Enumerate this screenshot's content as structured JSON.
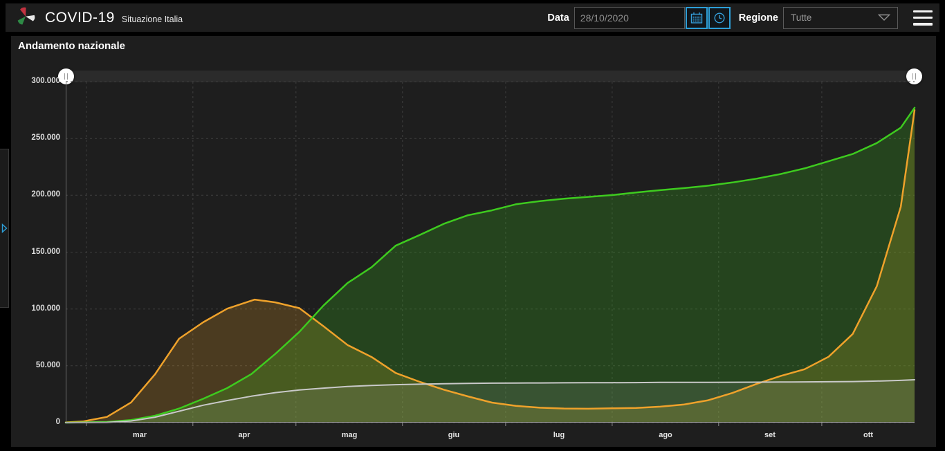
{
  "header": {
    "title": "COVID-19",
    "subtitle": "Situazione Italia",
    "date_label": "Data",
    "date_value": "28/10/2020",
    "region_label": "Regione",
    "region_value": "Tutte"
  },
  "panel": {
    "title": "Andamento nazionale"
  },
  "colors": {
    "accent_blue": "#2d9fd8",
    "series_green": "#3ecb1f",
    "series_orange": "#efa22b",
    "series_gray": "#c9c9c9",
    "panel_bg": "#1e1e1e",
    "page_bg": "#000000"
  },
  "chart_data": {
    "type": "area",
    "title": "Andamento nazionale",
    "xlabel": "",
    "ylabel": "",
    "grid": "dashed",
    "legend_position": "none",
    "x_days_total": 247,
    "ylim": [
      0,
      300000
    ],
    "yticks": [
      {
        "value": 0,
        "label": "0"
      },
      {
        "value": 50000,
        "label": "50.000"
      },
      {
        "value": 100000,
        "label": "100.000"
      },
      {
        "value": 150000,
        "label": "150.000"
      },
      {
        "value": 200000,
        "label": "200.000"
      },
      {
        "value": 250000,
        "label": "250.000"
      },
      {
        "value": 300000,
        "label": "300.000"
      }
    ],
    "months": [
      {
        "label": "mar",
        "tick_day": 6,
        "center_day": 21.5
      },
      {
        "label": "apr",
        "tick_day": 37,
        "center_day": 52
      },
      {
        "label": "mag",
        "tick_day": 67,
        "center_day": 82.5
      },
      {
        "label": "giu",
        "tick_day": 98,
        "center_day": 113
      },
      {
        "label": "lug",
        "tick_day": 128,
        "center_day": 143.5
      },
      {
        "label": "ago",
        "tick_day": 159,
        "center_day": 174.5
      },
      {
        "label": "set",
        "tick_day": 190,
        "center_day": 205
      },
      {
        "label": "ott",
        "tick_day": 220,
        "center_day": 233.5
      }
    ],
    "series": [
      {
        "name": "series-orange",
        "color": "#efa22b",
        "fill_opacity": 0.22,
        "line_width": 2.5,
        "points": [
          [
            0,
            221
          ],
          [
            5,
            1049
          ],
          [
            12,
            5061
          ],
          [
            19,
            17750
          ],
          [
            26,
            42681
          ],
          [
            33,
            73880
          ],
          [
            40,
            88274
          ],
          [
            47,
            100269
          ],
          [
            55,
            108257
          ],
          [
            61,
            105847
          ],
          [
            68,
            100704
          ],
          [
            75,
            84842
          ],
          [
            82,
            68351
          ],
          [
            89,
            57752
          ],
          [
            96,
            43691
          ],
          [
            103,
            35877
          ],
          [
            110,
            28997
          ],
          [
            117,
            23101
          ],
          [
            124,
            17638
          ],
          [
            131,
            14709
          ],
          [
            138,
            13157
          ],
          [
            145,
            12442
          ],
          [
            152,
            12248
          ],
          [
            159,
            12616
          ],
          [
            166,
            12924
          ],
          [
            173,
            14081
          ],
          [
            180,
            16014
          ],
          [
            187,
            19714
          ],
          [
            194,
            26078
          ],
          [
            201,
            34000
          ],
          [
            208,
            41000
          ],
          [
            215,
            47000
          ],
          [
            222,
            58000
          ],
          [
            229,
            78000
          ],
          [
            236,
            120000
          ],
          [
            243,
            190000
          ],
          [
            247,
            275000
          ]
        ]
      },
      {
        "name": "series-green",
        "color": "#3ecb1f",
        "fill_opacity": 0.22,
        "line_width": 2.5,
        "points": [
          [
            0,
            1
          ],
          [
            12,
            589
          ],
          [
            19,
            2335
          ],
          [
            26,
            6072
          ],
          [
            33,
            12384
          ],
          [
            40,
            20996
          ],
          [
            47,
            30455
          ],
          [
            54,
            42727
          ],
          [
            61,
            60498
          ],
          [
            68,
            79914
          ],
          [
            75,
            103031
          ],
          [
            82,
            122810
          ],
          [
            89,
            136720
          ],
          [
            96,
            155633
          ],
          [
            103,
            165078
          ],
          [
            110,
            174865
          ],
          [
            117,
            182453
          ],
          [
            124,
            186725
          ],
          [
            131,
            192108
          ],
          [
            138,
            194928
          ],
          [
            145,
            196949
          ],
          [
            152,
            198593
          ],
          [
            159,
            200229
          ],
          [
            166,
            202461
          ],
          [
            173,
            204506
          ],
          [
            180,
            206329
          ],
          [
            187,
            208490
          ],
          [
            194,
            211272
          ],
          [
            201,
            214645
          ],
          [
            208,
            218703
          ],
          [
            215,
            223693
          ],
          [
            222,
            229970
          ],
          [
            229,
            236363
          ],
          [
            236,
            245964
          ],
          [
            243,
            259456
          ],
          [
            247,
            277000
          ]
        ]
      },
      {
        "name": "series-gray",
        "color": "#c9c9c9",
        "fill_opacity": 0.12,
        "line_width": 2,
        "points": [
          [
            0,
            7
          ],
          [
            12,
            233
          ],
          [
            19,
            1441
          ],
          [
            26,
            4825
          ],
          [
            33,
            10023
          ],
          [
            40,
            15362
          ],
          [
            47,
            19468
          ],
          [
            54,
            23227
          ],
          [
            61,
            26384
          ],
          [
            68,
            28710
          ],
          [
            75,
            30395
          ],
          [
            82,
            31763
          ],
          [
            89,
            32735
          ],
          [
            96,
            33415
          ],
          [
            103,
            33846
          ],
          [
            110,
            34223
          ],
          [
            117,
            34561
          ],
          [
            124,
            34738
          ],
          [
            131,
            34854
          ],
          [
            138,
            34938
          ],
          [
            145,
            35028
          ],
          [
            152,
            35097
          ],
          [
            159,
            35154
          ],
          [
            166,
            35203
          ],
          [
            173,
            35396
          ],
          [
            180,
            35430
          ],
          [
            187,
            35477
          ],
          [
            194,
            35534
          ],
          [
            201,
            35603
          ],
          [
            208,
            35692
          ],
          [
            215,
            35818
          ],
          [
            222,
            35968
          ],
          [
            229,
            36166
          ],
          [
            236,
            36543
          ],
          [
            243,
            37210
          ],
          [
            247,
            37700
          ]
        ]
      }
    ]
  }
}
